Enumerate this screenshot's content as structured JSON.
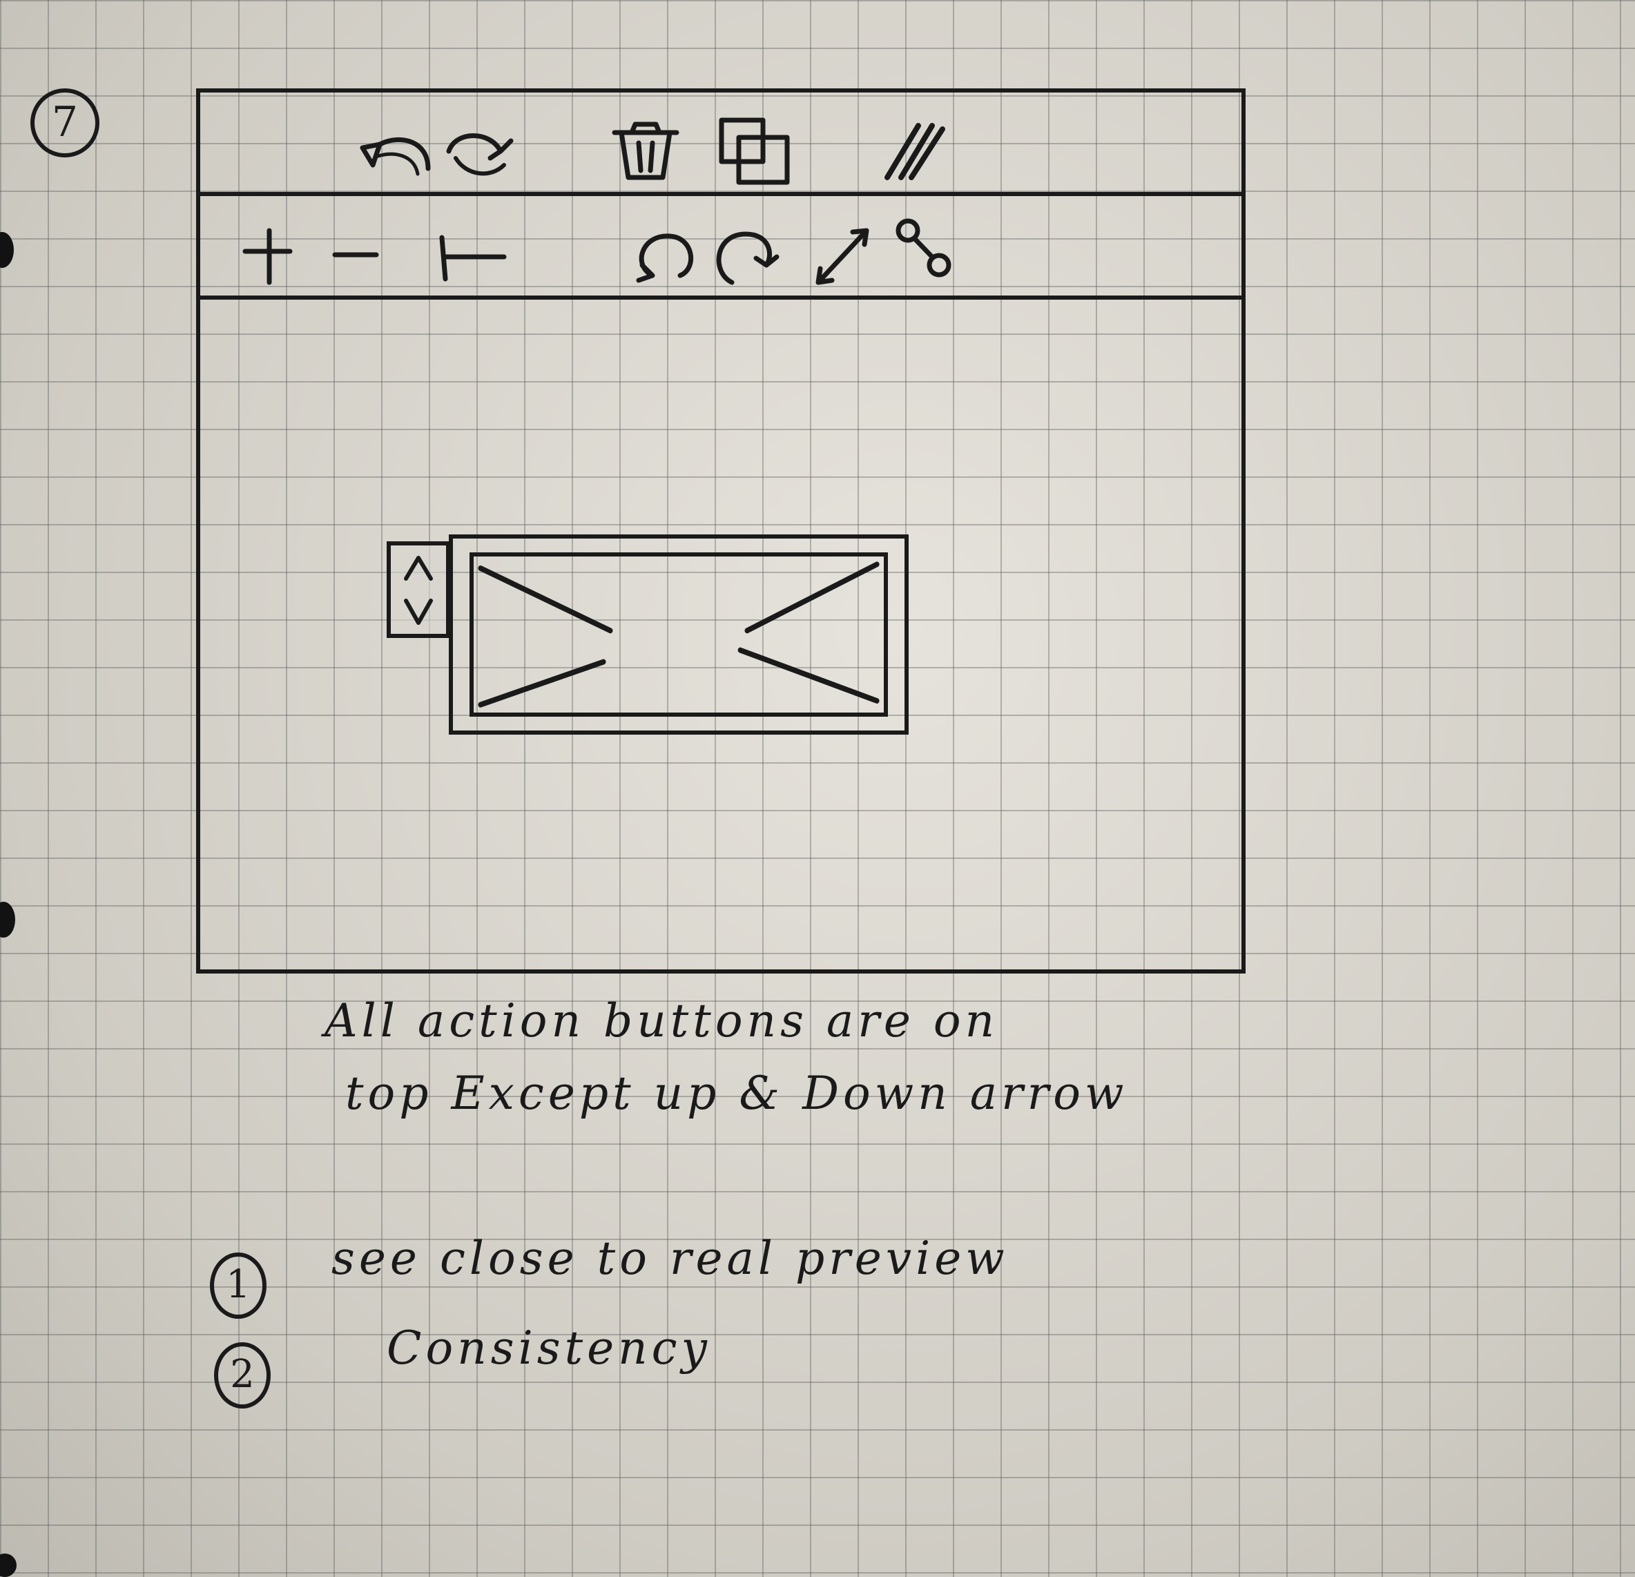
{
  "page": {
    "number": "7",
    "ink_color": "#1a1a1a",
    "paper_color": "#d9d6cf"
  },
  "toolbar_top": {
    "icons": [
      "undo-icon",
      "redo-icon",
      "delete-icon",
      "duplicate-icon",
      "pen-icon"
    ]
  },
  "toolbar_second": {
    "icons": [
      "zoom-in-icon",
      "zoom-out-icon",
      "fit-icon",
      "rotate-left-icon",
      "rotate-right-icon",
      "resize-icon",
      "link-icon"
    ]
  },
  "layer_controls": {
    "up": "^",
    "down": "v"
  },
  "notes": {
    "line1": "All action buttons are on",
    "line2": "top Except up & Down arrow"
  },
  "list": [
    {
      "marker": "1",
      "text": "see close to real preview"
    },
    {
      "marker": "2",
      "text": "Consistency"
    }
  ]
}
